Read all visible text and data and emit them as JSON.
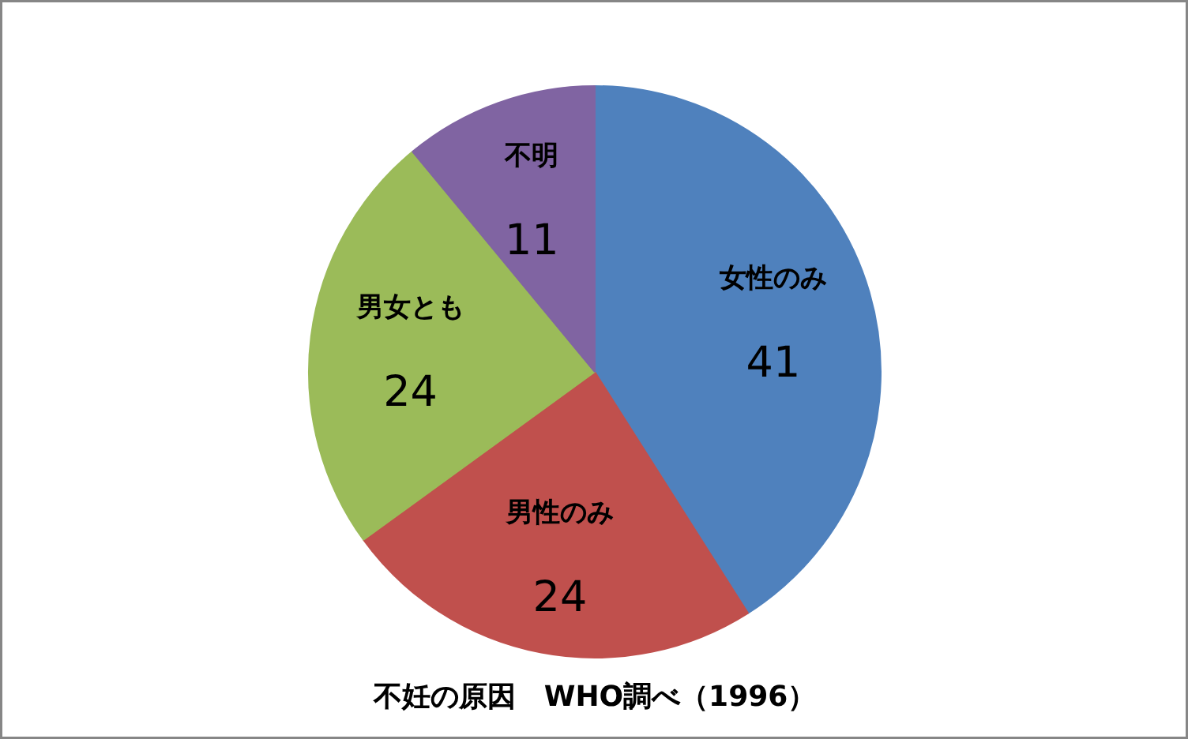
{
  "chart_data": {
    "type": "pie",
    "title": "不妊の原因　WHO調べ（1996）",
    "categories": [
      "女性のみ",
      "男性のみ",
      "男女とも",
      "不明"
    ],
    "values": [
      41,
      24,
      24,
      11
    ],
    "colors": [
      "#4f81bd",
      "#c0504d",
      "#9bbb59",
      "#8064a2"
    ],
    "data_labels": true
  }
}
